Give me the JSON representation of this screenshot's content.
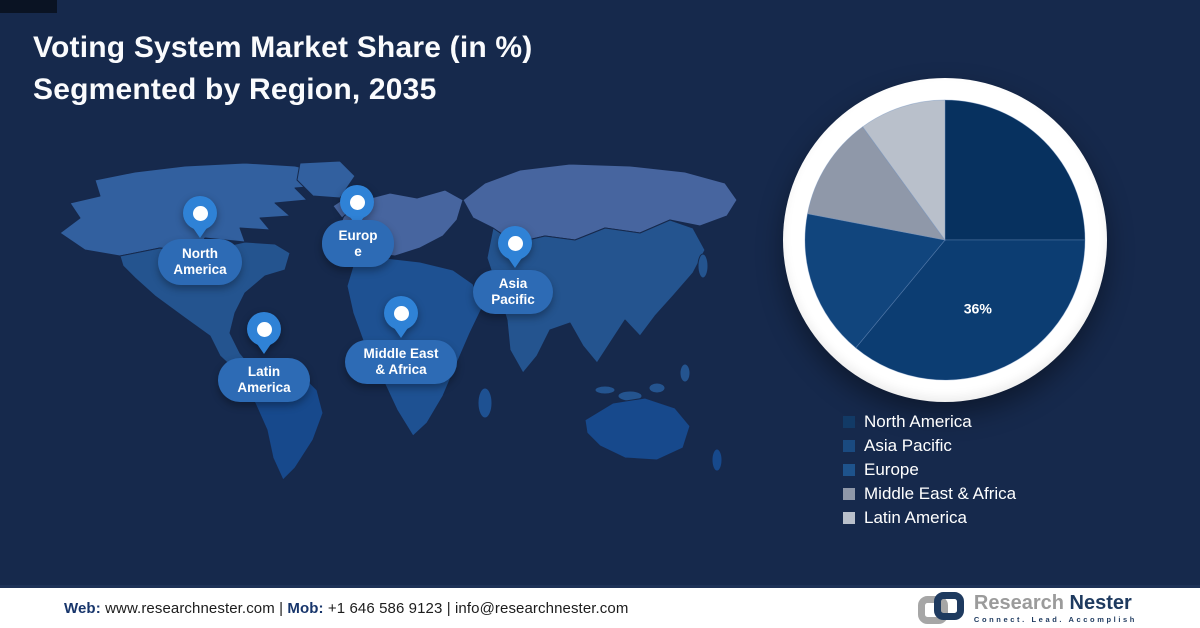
{
  "page": {
    "title_line1": "Voting System Market Share (in %)",
    "title_line2": "Segmented by Region, 2035"
  },
  "colors": {
    "background": "#16294C",
    "pin": "#2F82D6",
    "bubble": "#2D6BB5",
    "footer_label_navy": "#17356B"
  },
  "map": {
    "pins": [
      {
        "region": "North America",
        "label": "North\nAmerica"
      },
      {
        "region": "Europe",
        "label": "Europ\ne"
      },
      {
        "region": "Asia Pacific",
        "label": "Asia\nPacific"
      },
      {
        "region": "Middle East & Africa",
        "label": "Middle East\n& Africa"
      },
      {
        "region": "Latin America",
        "label": "Latin\nAmerica"
      }
    ]
  },
  "chart_data": {
    "type": "pie",
    "title": "Voting System Market Share (in %) Segmented by Region, 2035",
    "start_angle_deg": -90,
    "direction": "clockwise",
    "slices": [
      {
        "name": "North America",
        "value": 25,
        "color": "#07315F",
        "data_label": ""
      },
      {
        "name": "Asia Pacific",
        "value": 36,
        "color": "#0C3D72",
        "data_label": "36%"
      },
      {
        "name": "Europe",
        "value": 17,
        "color": "#11457D",
        "data_label": ""
      },
      {
        "name": "Middle East & Africa",
        "value": 12,
        "color": "#8F98A9",
        "data_label": ""
      },
      {
        "name": "Latin America",
        "value": 10,
        "color": "#B9C0CB",
        "data_label": ""
      }
    ],
    "note": "Only the Asia Pacific slice carries a printed data label (36%); other slice values estimated from angles.",
    "legend_position": "bottom-right"
  },
  "legend": {
    "items": [
      {
        "label": "North America",
        "color": "#123A66"
      },
      {
        "label": "Asia Pacific",
        "color": "#1A4A80"
      },
      {
        "label": "Europe",
        "color": "#1E538C"
      },
      {
        "label": "Middle East & Africa",
        "color": "#8F98A9"
      },
      {
        "label": "Latin America",
        "color": "#B9C0CB"
      }
    ]
  },
  "footer": {
    "web_label": "Web:",
    "web_value": "www.researchnester.com",
    "separator": "|",
    "mob_label": "Mob:",
    "mob_value": "+1 646 586 9123",
    "email_value": "info@researchnester.com",
    "logo": {
      "name_part1": "Research",
      "name_part2": "Nester",
      "tagline": "Connect. Lead. Accomplish"
    }
  }
}
